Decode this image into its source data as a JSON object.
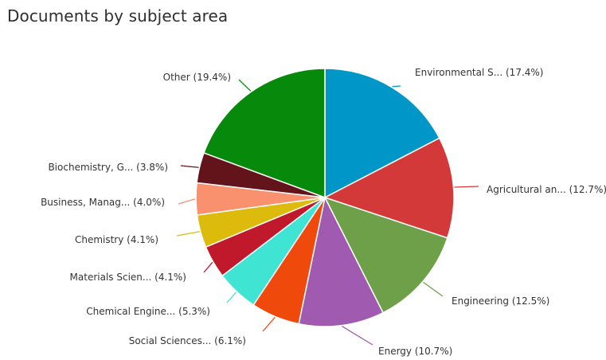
{
  "chart_data": {
    "type": "pie",
    "title": "Documents by subject area",
    "start_angle_deg": 0,
    "direction": "clockwise",
    "slices": [
      {
        "label": "Environmental S... (17.4%)",
        "value": 17.4,
        "color": "#0097C8"
      },
      {
        "label": "Agricultural an... (12.7%)",
        "value": 12.7,
        "color": "#D43939"
      },
      {
        "label": "Engineering (12.5%)",
        "value": 12.5,
        "color": "#6E9F49"
      },
      {
        "label": "Energy (10.7%)",
        "value": 10.7,
        "color": "#A05BB0"
      },
      {
        "label": "Social Sciences... (6.1%)",
        "value": 6.1,
        "color": "#EF4A0B"
      },
      {
        "label": "Chemical Engine... (5.3%)",
        "value": 5.3,
        "color": "#3FE4D2"
      },
      {
        "label": "Materials Scien... (4.1%)",
        "value": 4.1,
        "color": "#C0192C"
      },
      {
        "label": "Chemistry (4.1%)",
        "value": 4.1,
        "color": "#DCBB0C"
      },
      {
        "label": "Business, Manag... (4.0%)",
        "value": 4.0,
        "color": "#F9906E"
      },
      {
        "label": "Biochemistry, G... (3.8%)",
        "value": 3.8,
        "color": "#63141A"
      },
      {
        "label": "Other (19.4%)",
        "value": 19.4,
        "color": "#078A0B"
      }
    ]
  }
}
